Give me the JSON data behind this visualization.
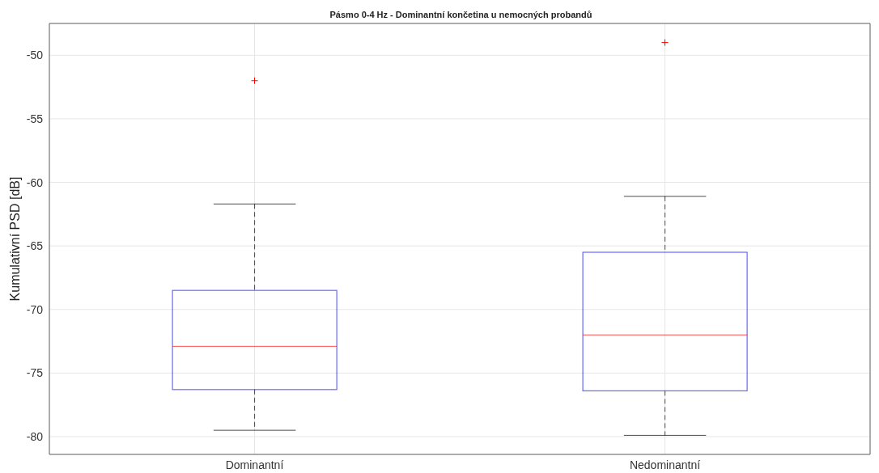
{
  "chart_data": {
    "type": "box",
    "title": "Pásmo 0-4 Hz - Dominantní končetina u nemocných probandů",
    "ylabel": "Kumulativní PSD [dB]",
    "categories": [
      "Dominantní",
      "Nedominantní"
    ],
    "series": [
      {
        "color": "#0000ff",
        "boxes": [
          {
            "low": -79.5,
            "q1": -76.3,
            "median": -72.9,
            "q3": -68.5,
            "high": -61.7,
            "outliers": [
              -52.0
            ]
          },
          {
            "low": -79.9,
            "q1": -76.4,
            "median": -72.0,
            "q3": -65.5,
            "high": -61.1,
            "outliers": [
              -49.0
            ]
          }
        ]
      }
    ],
    "ylim": [
      -81.4,
      -47.5
    ],
    "yticks": [
      -80,
      -75,
      -70,
      -65,
      -60,
      -55,
      -50
    ],
    "grid": true,
    "marker": "cross"
  }
}
